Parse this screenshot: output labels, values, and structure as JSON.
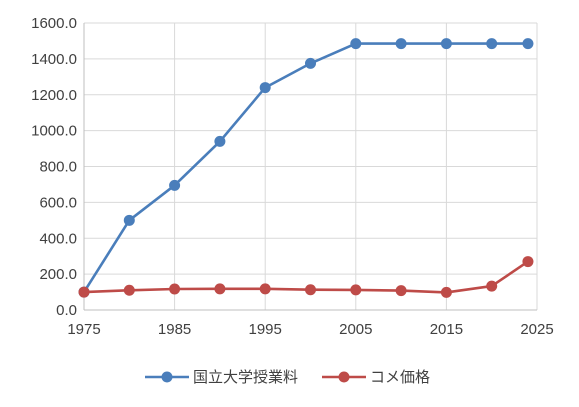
{
  "chart_data": {
    "type": "line",
    "title": "",
    "xlabel": "",
    "ylabel": "",
    "xlim": [
      1975,
      2025
    ],
    "ylim": [
      0,
      1600
    ],
    "x_ticks": [
      "1975",
      "1985",
      "1995",
      "2005",
      "2015",
      "2025"
    ],
    "y_ticks": [
      "0.0",
      "200.0",
      "400.0",
      "600.0",
      "800.0",
      "1000.0",
      "1200.0",
      "1400.0",
      "1600.0"
    ],
    "grid": true,
    "legend_position": "bottom",
    "series": [
      {
        "name": "国立大学授業料",
        "color": "#4a7ebb",
        "marker": "circle",
        "x": [
          1975,
          1980,
          1985,
          1990,
          1995,
          2000,
          2005,
          2010,
          2015,
          2020,
          2024
        ],
        "y": [
          100,
          500,
          695,
          940,
          1240,
          1375,
          1485,
          1485,
          1485,
          1485,
          1485
        ]
      },
      {
        "name": "コメ価格",
        "color": "#be4b48",
        "marker": "circle",
        "x": [
          1975,
          1980,
          1985,
          1990,
          1995,
          2000,
          2005,
          2010,
          2015,
          2020,
          2024
        ],
        "y": [
          100,
          110,
          117,
          118,
          118,
          113,
          112,
          108,
          98,
          133,
          270
        ]
      }
    ]
  }
}
